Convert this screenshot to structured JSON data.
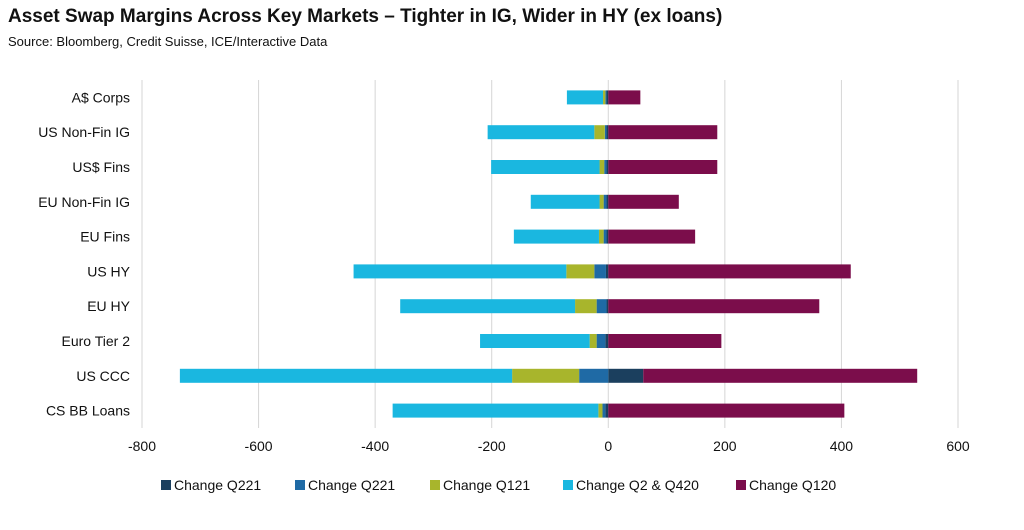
{
  "header": {
    "title": "Asset Swap Margins Across Key Markets – Tighter in IG, Wider in HY (ex loans)",
    "subtitle": "Source: Bloomberg, Credit Suisse, ICE/Interactive Data"
  },
  "chart_data": {
    "type": "bar",
    "orientation": "horizontal",
    "stacked": true,
    "title": "Asset Swap Margins Across Key Markets – Tighter in IG, Wider in HY (ex loans)",
    "xlim": [
      -800,
      600
    ],
    "xticks": [
      -800,
      -600,
      -400,
      -200,
      0,
      200,
      400,
      600
    ],
    "grid": true,
    "legend_position": "bottom",
    "categories": [
      "A$ Corps",
      "US Non-Fin IG",
      "US$ Fins",
      "EU Non-Fin IG",
      "EU Fins",
      "US HY",
      "EU HY",
      "Euro Tier 2",
      "US CCC",
      "CS BB Loans"
    ],
    "series": [
      {
        "name": "Change Q221",
        "color": "#1b3f5e",
        "values": [
          -3,
          -3,
          -3,
          -3,
          -3,
          -4,
          -3,
          -5,
          60,
          -5
        ]
      },
      {
        "name": "Change Q221",
        "color": "#1f6aa5",
        "values": [
          -2,
          -3,
          -4,
          -5,
          -5,
          -20,
          -17,
          -15,
          -50,
          -5
        ]
      },
      {
        "name": "Change Q121",
        "color": "#a8b52c",
        "values": [
          -4,
          -18,
          -8,
          -7,
          -8,
          -48,
          -37,
          -12,
          -115,
          -7
        ]
      },
      {
        "name": "Change Q2 & Q420",
        "color": "#1ab7e0",
        "values": [
          -62,
          -183,
          -186,
          -118,
          -146,
          -365,
          -300,
          -188,
          -570,
          -353
        ]
      },
      {
        "name": "Change Q120",
        "color": "#7b0d4b",
        "values": [
          55,
          187,
          187,
          121,
          149,
          416,
          362,
          194,
          470,
          405
        ]
      }
    ]
  }
}
